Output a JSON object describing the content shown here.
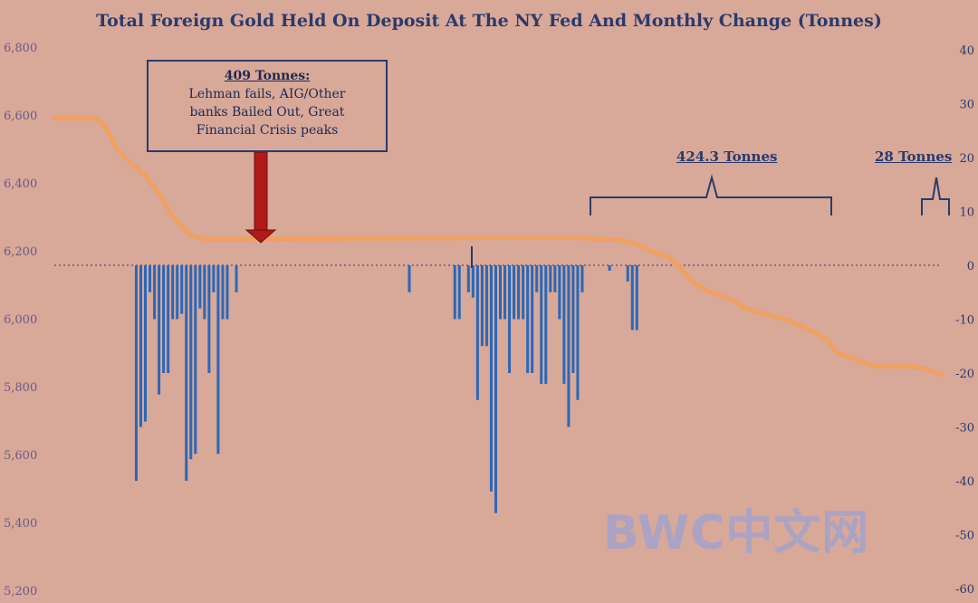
{
  "chart_data": {
    "type": "line+bar",
    "title": "Total Foreign Gold Held On Deposit At The NY Fed And Monthly Change (Tonnes)",
    "left_axis": {
      "ticks": [
        "6,800",
        "6,600",
        "6,400",
        "6,200",
        "6,000",
        "5,800",
        "5,600",
        "5,400",
        "5,200"
      ],
      "range": [
        5200,
        6800
      ]
    },
    "right_axis": {
      "ticks": [
        "40",
        "30",
        "20",
        "10",
        "0",
        "-10",
        "-20",
        "-30",
        "-40",
        "-50",
        "-60"
      ],
      "range": [
        -60,
        40
      ]
    },
    "line_color": "#f0a060",
    "bar_color": "#2a68b8",
    "line_series": [
      [
        0,
        6590
      ],
      [
        9,
        6590
      ],
      [
        11,
        6570
      ],
      [
        14,
        6495
      ],
      [
        18,
        6445
      ],
      [
        20,
        6420
      ],
      [
        23,
        6370
      ],
      [
        26,
        6300
      ],
      [
        30,
        6245
      ],
      [
        33,
        6235
      ],
      [
        40,
        6235
      ],
      [
        60,
        6236
      ],
      [
        80,
        6237
      ],
      [
        100,
        6239
      ],
      [
        115,
        6238
      ],
      [
        124,
        6232
      ],
      [
        128,
        6220
      ],
      [
        131,
        6200
      ],
      [
        135,
        6180
      ],
      [
        138,
        6145
      ],
      [
        140,
        6110
      ],
      [
        144,
        6080
      ],
      [
        148,
        6060
      ],
      [
        152,
        6030
      ],
      [
        156,
        6015
      ],
      [
        160,
        6000
      ],
      [
        164,
        5980
      ],
      [
        167,
        5960
      ],
      [
        170,
        5935
      ],
      [
        172,
        5900
      ],
      [
        176,
        5880
      ],
      [
        180,
        5860
      ],
      [
        186,
        5860
      ],
      [
        190,
        5858
      ],
      [
        195,
        5835
      ]
    ],
    "bar_series": [
      [
        18,
        -40
      ],
      [
        19,
        -30
      ],
      [
        20,
        -29
      ],
      [
        21,
        -5
      ],
      [
        22,
        -10
      ],
      [
        23,
        -24
      ],
      [
        24,
        -20
      ],
      [
        25,
        -20
      ],
      [
        26,
        -10
      ],
      [
        27,
        -10
      ],
      [
        28,
        -9
      ],
      [
        29,
        -40
      ],
      [
        30,
        -36
      ],
      [
        31,
        -35
      ],
      [
        32,
        -8
      ],
      [
        33,
        -10
      ],
      [
        34,
        -20
      ],
      [
        35,
        -5
      ],
      [
        36,
        -35
      ],
      [
        37,
        -10
      ],
      [
        38,
        -10
      ],
      [
        40,
        -5
      ],
      [
        78,
        -5
      ],
      [
        88,
        -10
      ],
      [
        89,
        -10
      ],
      [
        91,
        -5
      ],
      [
        92,
        -6
      ],
      [
        93,
        -25
      ],
      [
        94,
        -15
      ],
      [
        95,
        -15
      ],
      [
        96,
        -42
      ],
      [
        97,
        -46
      ],
      [
        98,
        -10
      ],
      [
        99,
        -10
      ],
      [
        100,
        -20
      ],
      [
        101,
        -10
      ],
      [
        102,
        -10
      ],
      [
        103,
        -10
      ],
      [
        104,
        -20
      ],
      [
        105,
        -20
      ],
      [
        106,
        -5
      ],
      [
        107,
        -22
      ],
      [
        108,
        -22
      ],
      [
        109,
        -5
      ],
      [
        110,
        -5
      ],
      [
        111,
        -10
      ],
      [
        112,
        -22
      ],
      [
        113,
        -30
      ],
      [
        114,
        -20
      ],
      [
        115,
        -25
      ],
      [
        116,
        -5
      ],
      [
        122,
        -1
      ],
      [
        126,
        -3
      ],
      [
        127,
        -12
      ],
      [
        128,
        -12
      ]
    ]
  },
  "annotations": {
    "callout_heading": "409 Tonnes:",
    "callout_lines": [
      "Lehman fails, AIG/Other",
      "banks Bailed Out, Great",
      "Financial Crisis peaks"
    ],
    "brace_1_label": "424.3 Tonnes",
    "brace_2_label": "28 Tonnes"
  },
  "watermark": "BWC中文网"
}
